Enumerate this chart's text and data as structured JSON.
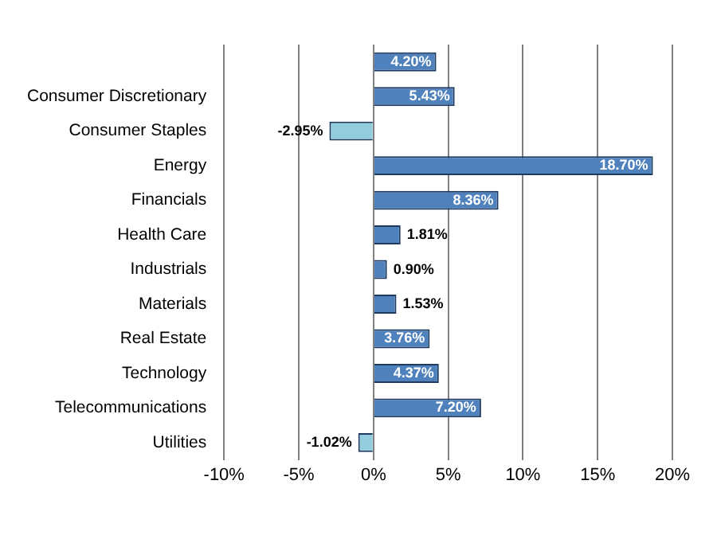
{
  "chart_data": {
    "type": "bar",
    "orientation": "horizontal",
    "categories": [
      null,
      "Consumer Discretionary",
      "Consumer Staples",
      "Energy",
      "Financials",
      "Health Care",
      "Industrials",
      "Materials",
      "Real Estate",
      "Technology",
      "Telecommunications",
      "Utilities"
    ],
    "values": [
      4.2,
      5.43,
      -2.95,
      18.7,
      8.36,
      1.81,
      0.9,
      1.53,
      3.76,
      4.37,
      7.2,
      -1.02
    ],
    "colors": [
      "#4f81bd",
      "#4f81bd",
      "#93cddd",
      "#4f81bd",
      "#4f81bd",
      "#4f81bd",
      "#4f81bd",
      "#4f81bd",
      "#4f81bd",
      "#4f81bd",
      "#4f81bd",
      "#93cddd"
    ],
    "value_labels": [
      "4.20%",
      "5.43%",
      "-2.95%",
      "18.70%",
      "8.36%",
      "1.81%",
      "0.90%",
      "1.53%",
      "3.76%",
      "4.37%",
      "7.20%",
      "-1.02%"
    ],
    "xlim": [
      -10,
      20
    ],
    "xticks": [
      {
        "value": -10,
        "label": "-10%"
      },
      {
        "value": -5,
        "label": "-5%"
      },
      {
        "value": 0,
        "label": "0%"
      },
      {
        "value": 5,
        "label": "5%"
      },
      {
        "value": 10,
        "label": "10%"
      },
      {
        "value": 15,
        "label": "15%"
      },
      {
        "value": 20,
        "label": "20%"
      }
    ],
    "grid": "x",
    "legend": false
  }
}
